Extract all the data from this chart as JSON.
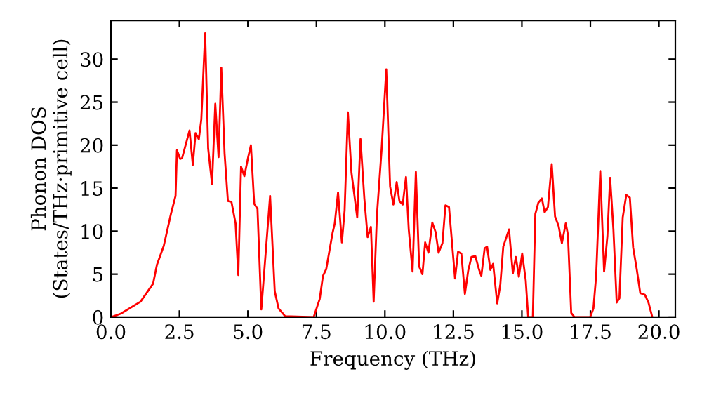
{
  "chart_data": {
    "type": "line",
    "xlabel": "Frequency (THz)",
    "ylabel": "Phonon DOS\n(States/THz·primitive cell)",
    "xlim": [
      0,
      20.6
    ],
    "ylim": [
      0,
      34.5
    ],
    "xticks": [
      {
        "value": 0,
        "label": "0.0"
      },
      {
        "value": 2.5,
        "label": "2.5"
      },
      {
        "value": 5,
        "label": "5.0"
      },
      {
        "value": 7.5,
        "label": "7.5"
      },
      {
        "value": 10,
        "label": "10.0"
      },
      {
        "value": 12.5,
        "label": "12.5"
      },
      {
        "value": 15,
        "label": "15.0"
      },
      {
        "value": 17.5,
        "label": "17.5"
      },
      {
        "value": 20,
        "label": "20.0"
      }
    ],
    "yticks": [
      0,
      5,
      10,
      15,
      20,
      25,
      30
    ],
    "grid": false,
    "legend": false,
    "marker": "none",
    "line_style": "solid",
    "series": [
      {
        "color": "#ff0000",
        "x": [
          0,
          0.36,
          1.08,
          1.54,
          1.68,
          1.93,
          2.19,
          2.36,
          2.41,
          2.53,
          2.6,
          2.87,
          2.99,
          3.09,
          3.21,
          3.3,
          3.44,
          3.55,
          3.69,
          3.81,
          3.93,
          4.03,
          4.15,
          4.27,
          4.4,
          4.55,
          4.65,
          4.75,
          4.87,
          5.01,
          5.11,
          5.23,
          5.35,
          5.49,
          5.81,
          5.98,
          6.12,
          6.36,
          7.4,
          7.62,
          7.74,
          7.86,
          8.09,
          8.17,
          8.29,
          8.43,
          8.53,
          8.65,
          8.78,
          8.99,
          9.11,
          9.25,
          9.37,
          9.49,
          9.59,
          9.71,
          9.88,
          10.05,
          10.19,
          10.31,
          10.43,
          10.53,
          10.65,
          10.77,
          10.87,
          11.01,
          11.13,
          11.25,
          11.37,
          11.47,
          11.59,
          11.73,
          11.85,
          11.96,
          12.1,
          12.21,
          12.34,
          12.56,
          12.67,
          12.79,
          12.92,
          13.04,
          13.16,
          13.3,
          13.44,
          13.52,
          13.64,
          13.73,
          13.85,
          13.95,
          14.1,
          14.21,
          14.32,
          14.53,
          14.67,
          14.78,
          14.89,
          15.01,
          15.14,
          15.23,
          15.4,
          15.49,
          15.6,
          15.73,
          15.83,
          15.95,
          16.09,
          16.21,
          16.34,
          16.46,
          16.6,
          16.68,
          16.8,
          16.92,
          17.49,
          17.61,
          17.71,
          17.86,
          18,
          18.12,
          18.22,
          18.34,
          18.46,
          18.56,
          18.68,
          18.81,
          18.94,
          19.06,
          19.19,
          19.32,
          19.49,
          19.62,
          19.76
        ],
        "values": [
          0,
          0.4,
          1.8,
          3.9,
          6.1,
          8.3,
          12,
          14.1,
          19.4,
          18.4,
          18.5,
          21.7,
          17.7,
          21.4,
          20.7,
          23,
          33,
          19.6,
          15.5,
          24.8,
          18.6,
          29,
          19,
          13.5,
          13.4,
          10.9,
          4.9,
          17.5,
          16.4,
          18.6,
          20,
          13.2,
          12.6,
          0.9,
          14.1,
          3,
          1,
          0.1,
          0,
          2.1,
          4.8,
          5.6,
          9.8,
          10.9,
          14.5,
          8.7,
          12.4,
          23.8,
          16.8,
          11.6,
          20.7,
          13.8,
          9.3,
          10.5,
          1.8,
          11.9,
          19.5,
          28.8,
          15.2,
          13.1,
          15.7,
          13.5,
          13.1,
          16.3,
          10.2,
          5.3,
          16.9,
          5.9,
          5,
          8.7,
          7.5,
          11,
          9.9,
          7.5,
          8.6,
          13,
          12.8,
          4.5,
          7.6,
          7.4,
          2.7,
          5.4,
          7,
          7.1,
          5.5,
          4.8,
          8,
          8.2,
          5.5,
          6.2,
          1.6,
          3.7,
          8.2,
          10.2,
          5.1,
          7,
          4.7,
          7.4,
          4.3,
          0,
          0,
          12,
          13.3,
          13.8,
          12.2,
          12.8,
          17.8,
          11.7,
          10.6,
          8.6,
          10.9,
          9.6,
          0.5,
          0,
          0,
          1,
          4.8,
          17,
          5.3,
          9.4,
          16.2,
          10.2,
          1.7,
          2.2,
          11.6,
          14.2,
          13.9,
          8.1,
          5.6,
          2.8,
          2.6,
          1.7,
          0
        ]
      }
    ]
  }
}
